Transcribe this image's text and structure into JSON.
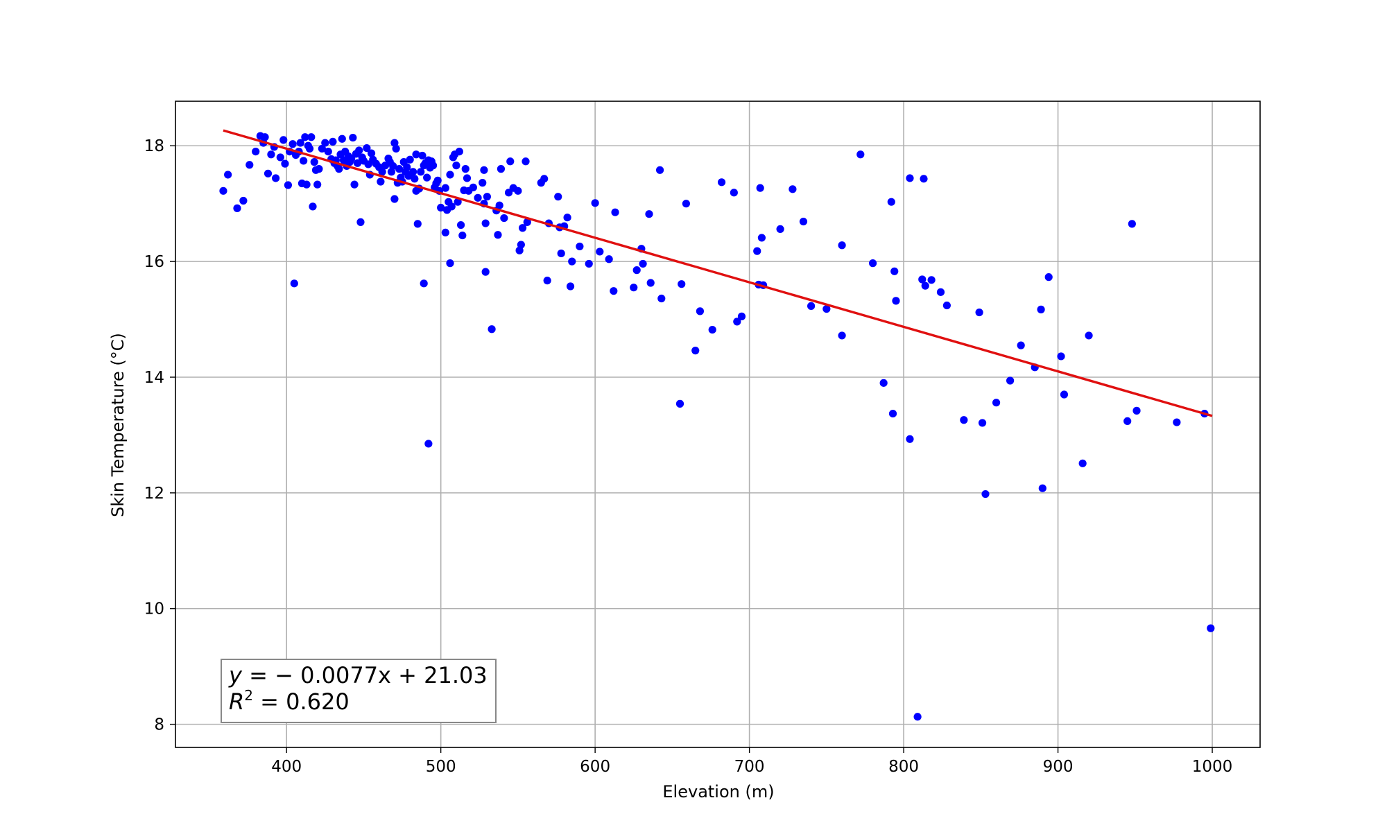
{
  "chart_data": {
    "type": "scatter",
    "title": "",
    "xlabel": "Elevation (m)",
    "ylabel": "Skin Temperature (°C)",
    "xlim": [
      328,
      1031
    ],
    "ylim": [
      7.6,
      18.77
    ],
    "xticks": [
      400,
      500,
      600,
      700,
      800,
      900,
      1000
    ],
    "yticks": [
      8,
      10,
      12,
      14,
      16,
      18
    ],
    "grid": true,
    "point_color": "#0000ff",
    "line_color": "#e01010",
    "fit": {
      "slope": -0.0077,
      "intercept": 21.03,
      "x_range": [
        359,
        1000
      ]
    },
    "annotation": {
      "line1_pre": "y",
      "line1_post": " = − 0.0077x + 21.03",
      "line2_pre": "R",
      "line2_sup": "2",
      "line2_post": " = 0.620",
      "position": "bottom-left"
    },
    "points": [
      [
        359,
        17.22
      ],
      [
        362,
        17.5
      ],
      [
        368,
        16.92
      ],
      [
        372,
        17.05
      ],
      [
        376,
        17.67
      ],
      [
        380,
        17.9
      ],
      [
        383,
        18.17
      ],
      [
        385,
        18.05
      ],
      [
        386,
        18.15
      ],
      [
        388,
        17.52
      ],
      [
        390,
        17.85
      ],
      [
        392,
        17.98
      ],
      [
        393,
        17.44
      ],
      [
        396,
        17.8
      ],
      [
        398,
        18.1
      ],
      [
        399,
        17.69
      ],
      [
        401,
        17.32
      ],
      [
        402,
        17.9
      ],
      [
        404,
        18.03
      ],
      [
        405,
        15.62
      ],
      [
        406,
        17.84
      ],
      [
        408,
        17.9
      ],
      [
        409,
        18.05
      ],
      [
        410,
        17.35
      ],
      [
        411,
        17.74
      ],
      [
        412,
        18.15
      ],
      [
        413,
        17.33
      ],
      [
        414,
        18.0
      ],
      [
        415,
        17.95
      ],
      [
        416,
        18.15
      ],
      [
        417,
        16.95
      ],
      [
        418,
        17.72
      ],
      [
        419,
        17.58
      ],
      [
        420,
        17.33
      ],
      [
        421,
        17.6
      ],
      [
        423,
        17.95
      ],
      [
        425,
        18.05
      ],
      [
        427,
        17.9
      ],
      [
        429,
        17.77
      ],
      [
        430,
        18.07
      ],
      [
        431,
        17.7
      ],
      [
        432,
        17.75
      ],
      [
        433,
        17.65
      ],
      [
        434,
        17.6
      ],
      [
        435,
        17.85
      ],
      [
        436,
        18.12
      ],
      [
        437,
        17.75
      ],
      [
        438,
        17.9
      ],
      [
        439,
        17.65
      ],
      [
        440,
        17.82
      ],
      [
        441,
        17.72
      ],
      [
        442,
        17.78
      ],
      [
        443,
        18.14
      ],
      [
        444,
        17.33
      ],
      [
        445,
        17.86
      ],
      [
        446,
        17.7
      ],
      [
        447,
        17.92
      ],
      [
        448,
        16.68
      ],
      [
        449,
        17.8
      ],
      [
        450,
        17.74
      ],
      [
        452,
        17.96
      ],
      [
        453,
        17.68
      ],
      [
        454,
        17.5
      ],
      [
        455,
        17.87
      ],
      [
        456,
        17.76
      ],
      [
        458,
        17.69
      ],
      [
        460,
        17.63
      ],
      [
        461,
        17.38
      ],
      [
        462,
        17.55
      ],
      [
        464,
        17.66
      ],
      [
        466,
        17.78
      ],
      [
        467,
        17.72
      ],
      [
        468,
        17.55
      ],
      [
        469,
        17.65
      ],
      [
        470,
        17.08
      ],
      [
        470,
        18.05
      ],
      [
        471,
        17.95
      ],
      [
        472,
        17.36
      ],
      [
        473,
        17.6
      ],
      [
        474,
        17.45
      ],
      [
        475,
        17.38
      ],
      [
        476,
        17.72
      ],
      [
        477,
        17.55
      ],
      [
        478,
        17.63
      ],
      [
        479,
        17.48
      ],
      [
        480,
        17.76
      ],
      [
        481,
        17.5
      ],
      [
        482,
        17.55
      ],
      [
        483,
        17.43
      ],
      [
        484,
        17.85
      ],
      [
        484,
        17.22
      ],
      [
        485,
        16.65
      ],
      [
        486,
        17.26
      ],
      [
        487,
        17.55
      ],
      [
        488,
        17.83
      ],
      [
        489,
        15.62
      ],
      [
        489,
        17.66
      ],
      [
        490,
        17.7
      ],
      [
        491,
        17.45
      ],
      [
        492,
        17.75
      ],
      [
        492,
        12.85
      ],
      [
        493,
        17.62
      ],
      [
        494,
        17.73
      ],
      [
        495,
        17.66
      ],
      [
        496,
        17.28
      ],
      [
        497,
        17.35
      ],
      [
        498,
        17.4
      ],
      [
        499,
        17.22
      ],
      [
        500,
        16.93
      ],
      [
        503,
        16.5
      ],
      [
        503,
        17.27
      ],
      [
        504,
        16.89
      ],
      [
        505,
        17.03
      ],
      [
        506,
        15.97
      ],
      [
        506,
        17.5
      ],
      [
        507,
        16.95
      ],
      [
        508,
        17.8
      ],
      [
        509,
        17.85
      ],
      [
        510,
        17.66
      ],
      [
        511,
        17.03
      ],
      [
        512,
        17.9
      ],
      [
        513,
        16.63
      ],
      [
        514,
        16.45
      ],
      [
        515,
        17.23
      ],
      [
        516,
        17.6
      ],
      [
        517,
        17.44
      ],
      [
        518,
        17.22
      ],
      [
        521,
        17.28
      ],
      [
        524,
        17.1
      ],
      [
        527,
        17.36
      ],
      [
        528,
        17.58
      ],
      [
        528,
        17.0
      ],
      [
        529,
        16.66
      ],
      [
        529,
        15.82
      ],
      [
        530,
        17.12
      ],
      [
        533,
        14.83
      ],
      [
        536,
        16.88
      ],
      [
        537,
        16.46
      ],
      [
        538,
        16.97
      ],
      [
        539,
        17.6
      ],
      [
        541,
        16.75
      ],
      [
        544,
        17.19
      ],
      [
        545,
        17.73
      ],
      [
        547,
        17.27
      ],
      [
        550,
        17.22
      ],
      [
        551,
        16.19
      ],
      [
        552,
        16.29
      ],
      [
        553,
        16.58
      ],
      [
        555,
        17.73
      ],
      [
        556,
        16.68
      ],
      [
        565,
        17.36
      ],
      [
        567,
        17.43
      ],
      [
        569,
        15.67
      ],
      [
        570,
        16.66
      ],
      [
        576,
        17.12
      ],
      [
        577,
        16.59
      ],
      [
        578,
        16.14
      ],
      [
        580,
        16.61
      ],
      [
        582,
        16.76
      ],
      [
        584,
        15.57
      ],
      [
        585,
        16.0
      ],
      [
        590,
        16.26
      ],
      [
        596,
        15.96
      ],
      [
        600,
        17.01
      ],
      [
        603,
        16.17
      ],
      [
        609,
        16.04
      ],
      [
        612,
        15.49
      ],
      [
        613,
        16.85
      ],
      [
        625,
        15.55
      ],
      [
        627,
        15.85
      ],
      [
        630,
        16.22
      ],
      [
        631,
        15.96
      ],
      [
        635,
        16.82
      ],
      [
        636,
        15.63
      ],
      [
        642,
        17.58
      ],
      [
        643,
        15.36
      ],
      [
        655,
        13.54
      ],
      [
        656,
        15.61
      ],
      [
        659,
        17.0
      ],
      [
        665,
        14.46
      ],
      [
        668,
        15.14
      ],
      [
        676,
        14.82
      ],
      [
        682,
        17.37
      ],
      [
        690,
        17.19
      ],
      [
        692,
        14.96
      ],
      [
        695,
        15.05
      ],
      [
        705,
        16.18
      ],
      [
        706,
        15.6
      ],
      [
        707,
        17.27
      ],
      [
        709,
        15.59
      ],
      [
        708,
        16.41
      ],
      [
        720,
        16.56
      ],
      [
        728,
        17.25
      ],
      [
        735,
        16.69
      ],
      [
        740,
        15.23
      ],
      [
        750,
        15.18
      ],
      [
        760,
        16.28
      ],
      [
        760,
        14.72
      ],
      [
        772,
        17.85
      ],
      [
        780,
        15.97
      ],
      [
        787,
        13.9
      ],
      [
        792,
        17.03
      ],
      [
        793,
        13.37
      ],
      [
        794,
        15.83
      ],
      [
        795,
        15.32
      ],
      [
        804,
        17.44
      ],
      [
        804,
        12.93
      ],
      [
        809,
        8.13
      ],
      [
        812,
        15.69
      ],
      [
        813,
        17.43
      ],
      [
        814,
        15.58
      ],
      [
        818,
        15.68
      ],
      [
        824,
        15.47
      ],
      [
        828,
        15.24
      ],
      [
        839,
        13.26
      ],
      [
        849,
        15.12
      ],
      [
        851,
        13.21
      ],
      [
        853,
        11.98
      ],
      [
        860,
        13.56
      ],
      [
        869,
        13.94
      ],
      [
        876,
        14.55
      ],
      [
        885,
        14.17
      ],
      [
        889,
        15.17
      ],
      [
        890,
        12.08
      ],
      [
        894,
        15.73
      ],
      [
        902,
        14.36
      ],
      [
        904,
        13.7
      ],
      [
        916,
        12.51
      ],
      [
        920,
        14.72
      ],
      [
        945,
        13.24
      ],
      [
        948,
        16.65
      ],
      [
        951,
        13.42
      ],
      [
        977,
        13.22
      ],
      [
        995,
        13.37
      ],
      [
        999,
        9.66
      ]
    ]
  }
}
